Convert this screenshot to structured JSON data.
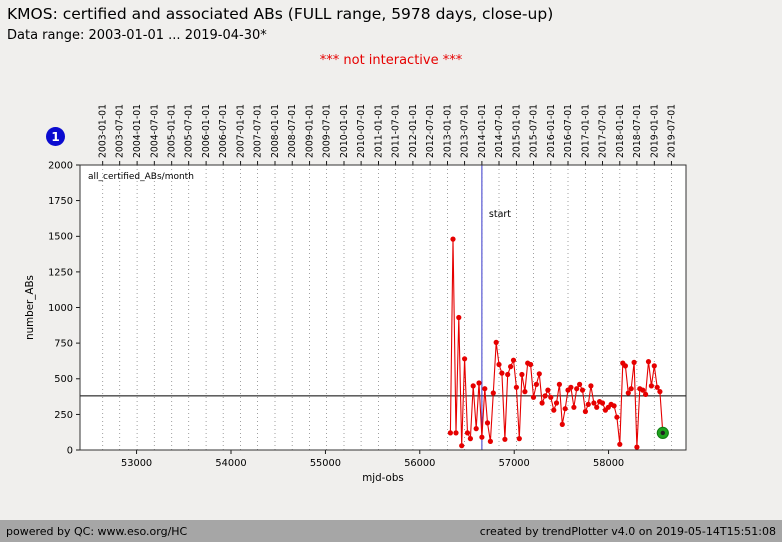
{
  "header": {
    "title": "KMOS: certified and associated ABs (FULL range, 5978 days, close-up)",
    "subtitle": "Data range: 2003-01-01 ... 2019-04-30*",
    "notice": "*** not interactive ***",
    "badge": "1"
  },
  "footer": {
    "left": "powered by QC: www.eso.org/HC",
    "right": "created by trendPlotter v4.0 on 2019-05-14T15:51:08"
  },
  "colors": {
    "series": "#e60000",
    "start_line": "#3434c8",
    "mean_line": "#000000",
    "last_point": "#1ea21e",
    "grid": "#888888",
    "notice": "#e60000",
    "badge": "#0b0bd0",
    "footer_bg": "#a6a6a6"
  },
  "chart_data": {
    "type": "line",
    "legend": "all_certified_ABs/month",
    "xlabel": "mjd-obs",
    "ylabel": "number_ABs",
    "xlim": [
      52400,
      58820
    ],
    "ylim": [
      0,
      2000
    ],
    "yticks": [
      0,
      250,
      500,
      750,
      1000,
      1250,
      1500,
      1750,
      2000
    ],
    "xticks": [
      53000,
      54000,
      55000,
      56000,
      57000,
      58000
    ],
    "date_labels": [
      "2003-01-01",
      "2003-07-01",
      "2004-01-01",
      "2004-07-01",
      "2005-01-01",
      "2005-07-01",
      "2006-01-01",
      "2006-07-01",
      "2007-01-01",
      "2007-07-01",
      "2008-01-01",
      "2008-07-01",
      "2009-01-01",
      "2009-07-01",
      "2010-01-01",
      "2010-07-01",
      "2011-01-01",
      "2011-07-01",
      "2012-01-01",
      "2012-07-01",
      "2013-01-01",
      "2013-07-01",
      "2014-01-01",
      "2014-07-01",
      "2015-01-01",
      "2015-07-01",
      "2016-01-01",
      "2016-07-01",
      "2017-01-01",
      "2017-07-01",
      "2018-01-01",
      "2018-07-01",
      "2019-01-01",
      "2019-07-01"
    ],
    "date_mjds": [
      52640,
      52821,
      53005,
      53187,
      53371,
      53552,
      53736,
      53917,
      54101,
      54282,
      54466,
      54648,
      54832,
      55013,
      55197,
      55378,
      55562,
      55743,
      55927,
      56109,
      56293,
      56474,
      56658,
      56839,
      57023,
      57204,
      57388,
      57570,
      57754,
      57935,
      58119,
      58300,
      58484,
      58665
    ],
    "hline": 380,
    "vline": {
      "mjd": 56658,
      "label": "start"
    },
    "series": [
      {
        "name": "all_certified_ABs/month",
        "x": [
          56324,
          56352,
          56383,
          56413,
          56444,
          56474,
          56505,
          56536,
          56566,
          56597,
          56627,
          56658,
          56689,
          56717,
          56748,
          56778,
          56809,
          56839,
          56870,
          56901,
          56931,
          56962,
          56992,
          57023,
          57054,
          57082,
          57113,
          57143,
          57174,
          57204,
          57235,
          57266,
          57296,
          57327,
          57357,
          57388,
          57419,
          57448,
          57479,
          57509,
          57540,
          57570,
          57601,
          57632,
          57662,
          57693,
          57723,
          57754,
          57785,
          57813,
          57844,
          57874,
          57905,
          57935,
          57966,
          57997,
          58027,
          58058,
          58088,
          58119,
          58150,
          58178,
          58209,
          58239,
          58270,
          58300,
          58331,
          58362,
          58392,
          58423,
          58453,
          58484,
          58515,
          58543,
          58574
        ],
        "y": [
          120,
          1480,
          120,
          930,
          30,
          640,
          120,
          80,
          450,
          150,
          470,
          90,
          430,
          190,
          60,
          400,
          755,
          600,
          540,
          75,
          530,
          585,
          630,
          440,
          80,
          530,
          410,
          610,
          600,
          370,
          460,
          535,
          330,
          380,
          420,
          370,
          280,
          330,
          460,
          180,
          290,
          420,
          440,
          300,
          430,
          460,
          420,
          270,
          320,
          450,
          330,
          300,
          340,
          330,
          280,
          300,
          320,
          310,
          230,
          40,
          610,
          590,
          400,
          430,
          615,
          20,
          430,
          420,
          390,
          620,
          450,
          590,
          440,
          410,
          120
        ]
      }
    ],
    "last_point": {
      "x": 58574,
      "y": 120
    }
  }
}
